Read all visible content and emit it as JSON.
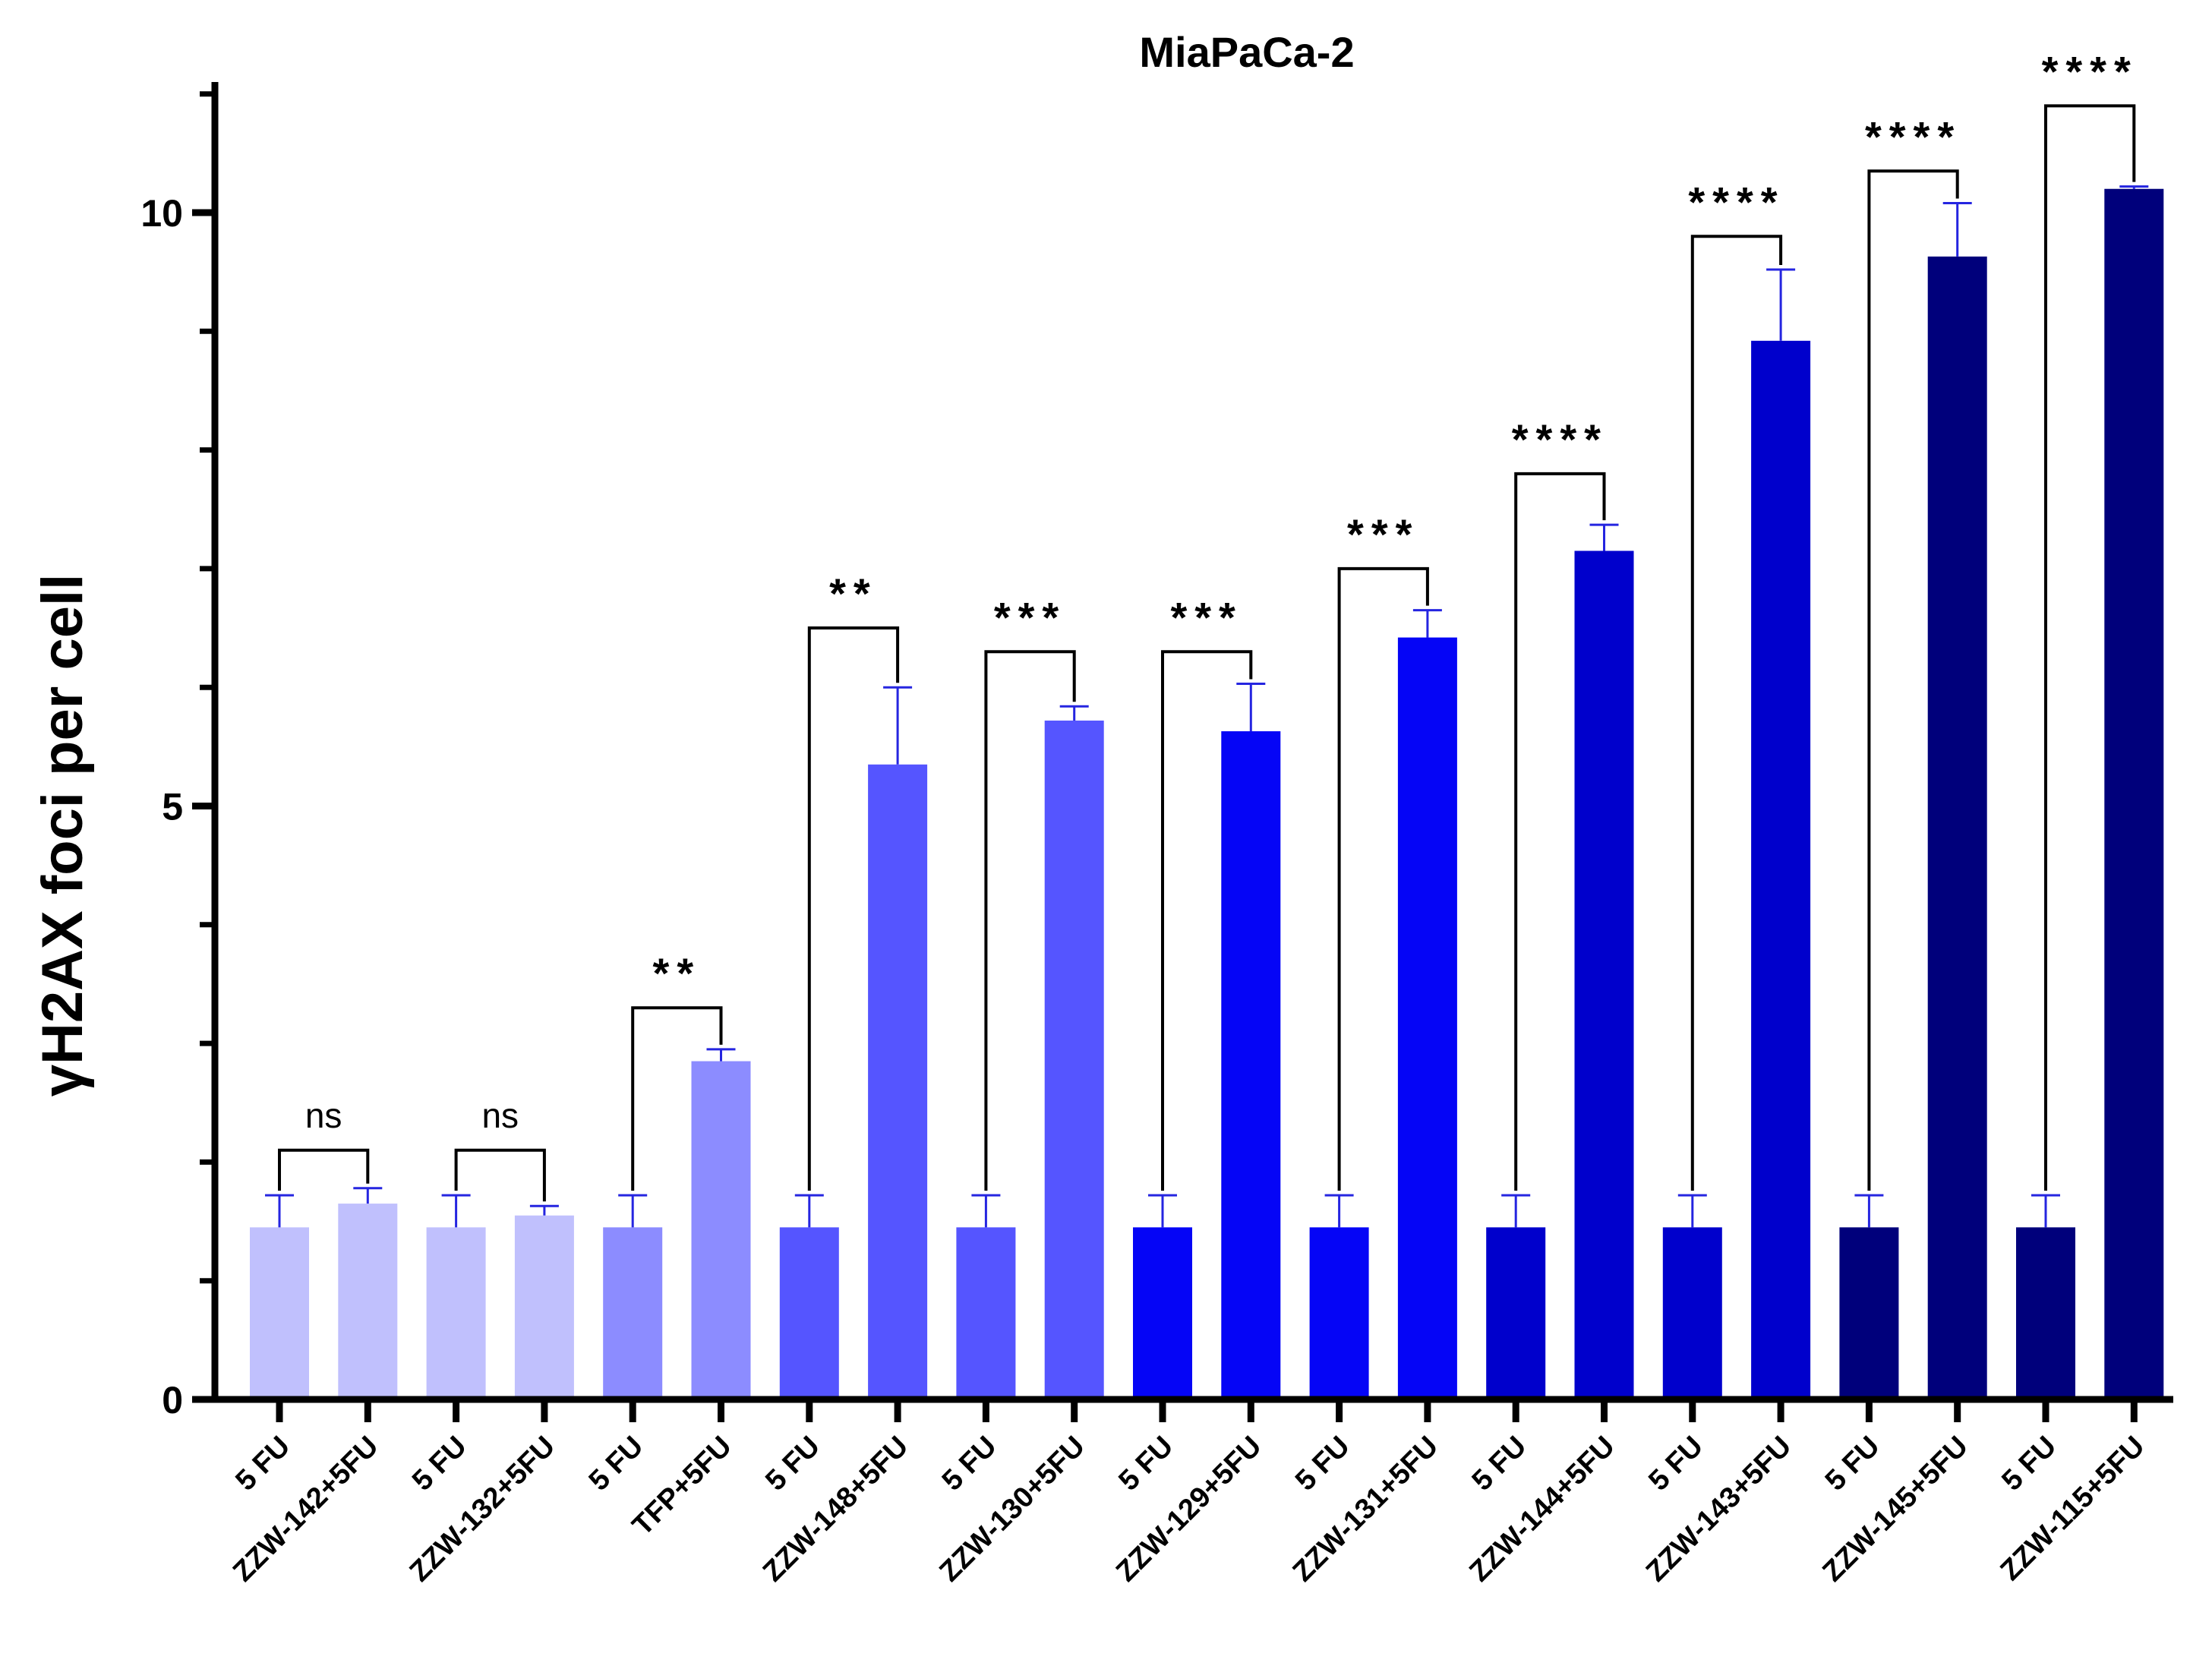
{
  "chart_data": {
    "type": "bar",
    "title": "MiaPaCa-2",
    "xlabel": "",
    "ylabel": "γH2AX foci per cell",
    "ylim": [
      0,
      11
    ],
    "y_ticks": [
      0,
      5,
      10
    ],
    "y_tick_labels": [
      "0",
      "5",
      "10"
    ],
    "y_minor_step": 1,
    "categories": [
      "5 FU",
      "ZZW-142+5FU",
      "5 FU",
      "ZZW-132+5FU",
      "5 FU",
      "TFP+5FU",
      "5 FU",
      "ZZW-148+5FU",
      "5 FU",
      "ZZW-130+5FU",
      "5 FU",
      "ZZW-129+5FU",
      "5 FU",
      "ZZW-131+5FU",
      "5 FU",
      "ZZW-144+5FU",
      "5 FU",
      "ZZW-143+5FU",
      "5 FU",
      "ZZW-145+5FU",
      "5 FU",
      "ZZW-115+5FU"
    ],
    "values": [
      1.45,
      1.65,
      1.45,
      1.55,
      1.45,
      2.85,
      1.45,
      5.35,
      1.45,
      5.72,
      1.45,
      5.63,
      1.45,
      6.42,
      1.45,
      7.15,
      1.45,
      8.92,
      1.45,
      9.63,
      1.45,
      10.2
    ],
    "errors": [
      0.27,
      0.13,
      0.27,
      0.08,
      0.27,
      0.1,
      0.27,
      0.65,
      0.27,
      0.12,
      0.27,
      0.4,
      0.27,
      0.23,
      0.27,
      0.22,
      0.27,
      0.6,
      0.27,
      0.45,
      0.27,
      0.02
    ],
    "colors": [
      "#c0c0fd",
      "#c0c0fd",
      "#c0c0fd",
      "#c0c0fd",
      "#8c8cff",
      "#8c8cff",
      "#5555ff",
      "#5555ff",
      "#5555ff",
      "#5555ff",
      "#0505f6",
      "#0505f6",
      "#0505f6",
      "#0505f6",
      "#0000cc",
      "#0000cc",
      "#0000cc",
      "#0000cc",
      "#00007b",
      "#00007b",
      "#00007b",
      "#00007b"
    ],
    "error_bar_color": "#2525e0",
    "comparisons": [
      {
        "pair": [
          0,
          1
        ],
        "label": "ns"
      },
      {
        "pair": [
          2,
          3
        ],
        "label": "ns"
      },
      {
        "pair": [
          4,
          5
        ],
        "label": "**"
      },
      {
        "pair": [
          6,
          7
        ],
        "label": "**"
      },
      {
        "pair": [
          8,
          9
        ],
        "label": "***"
      },
      {
        "pair": [
          10,
          11
        ],
        "label": "***"
      },
      {
        "pair": [
          12,
          13
        ],
        "label": "***"
      },
      {
        "pair": [
          14,
          15
        ],
        "label": "****"
      },
      {
        "pair": [
          16,
          17
        ],
        "label": "****"
      },
      {
        "pair": [
          18,
          19
        ],
        "label": "****"
      },
      {
        "pair": [
          20,
          21
        ],
        "label": "****"
      }
    ],
    "comparison_bracket_levels": [
      2.1,
      2.1,
      3.3,
      6.5,
      6.3,
      6.3,
      7.0,
      7.8,
      9.8,
      10.35,
      10.9
    ]
  }
}
